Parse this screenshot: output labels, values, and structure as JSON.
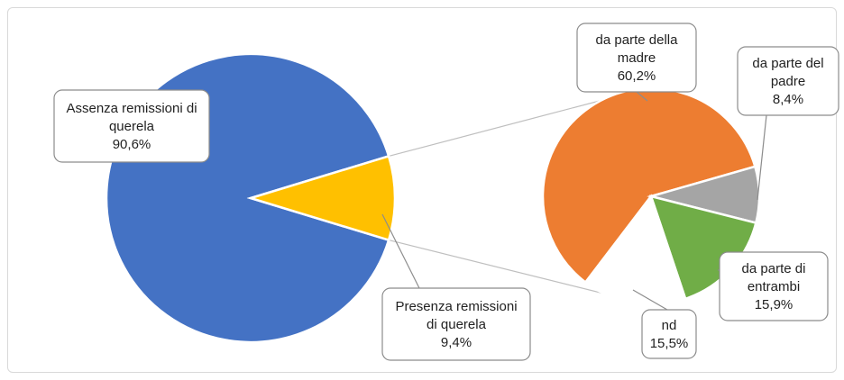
{
  "chart_data": {
    "type": "pie",
    "subtype": "pie-of-pie",
    "title": "",
    "grid": false,
    "legend": "none",
    "main_pie": {
      "slices": [
        {
          "label": "Assenza remissioni di querela",
          "value": 90.6,
          "value_label": "90,6%",
          "color": "#4472C4"
        },
        {
          "label": "Presenza remissioni di querela",
          "value": 9.4,
          "value_label": "9,4%",
          "color": "#FFC000"
        }
      ]
    },
    "secondary_pie": {
      "breakdown_of": "Presenza remissioni di querela",
      "slices": [
        {
          "label": "da parte della madre",
          "value": 60.2,
          "value_label": "60,2%",
          "color": "#ED7D31"
        },
        {
          "label": "da parte del padre",
          "value": 8.4,
          "value_label": "8,4%",
          "color": "#A5A5A5"
        },
        {
          "label": "da parte di entrambi",
          "value": 15.9,
          "value_label": "15,9%",
          "color": "#70AD47"
        },
        {
          "label": "nd",
          "value": 15.5,
          "value_label": "15,5%",
          "color": "#FFFFFF"
        }
      ]
    }
  }
}
